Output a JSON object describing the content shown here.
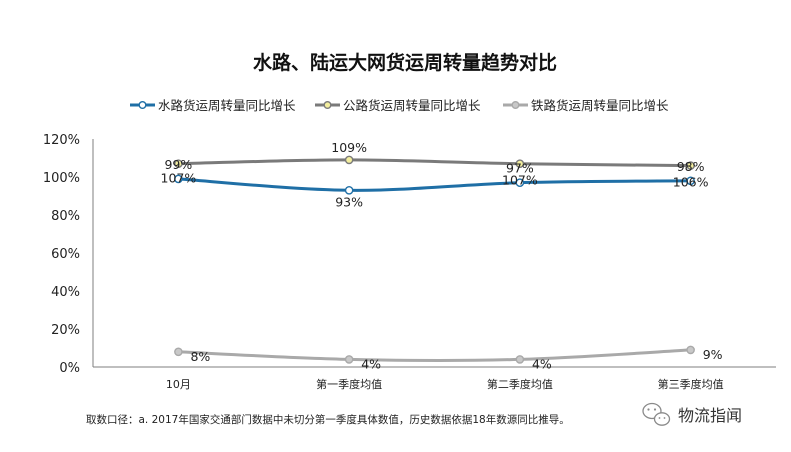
{
  "chart_data": {
    "type": "line",
    "title": "水路、陆运大网货运周转量趋势对比",
    "categories": [
      "10月",
      "第一季度均值",
      "第二季度均值",
      "第三季度均值"
    ],
    "ylim": [
      0,
      120
    ],
    "yticks": [
      "0%",
      "20%",
      "40%",
      "60%",
      "80%",
      "100%",
      "120%"
    ],
    "grid": false,
    "legend_position": "top",
    "series": [
      {
        "name": "水路货运周转量同比增长",
        "color": "#1f6fa6",
        "values": [
          99,
          93,
          97,
          98
        ],
        "labels": [
          "99%",
          "93%",
          "97%",
          "98%"
        ]
      },
      {
        "name": "公路货运周转量同比增长",
        "color": "#7a7a7a",
        "values": [
          107,
          109,
          107,
          106
        ],
        "labels": [
          "107%",
          "109%",
          "107%",
          "106%"
        ]
      },
      {
        "name": "铁路货运周转量同比增长",
        "color": "#a9a9a9",
        "values": [
          8,
          4,
          4,
          9
        ],
        "labels": [
          "8%",
          "4%",
          "4%",
          "9%"
        ]
      }
    ]
  },
  "footnote": "取数口径：a. 2017年国家交通部门数据中未切分第一季度具体数值，历史数据依据18年数源同比推导。",
  "brand": "物流指闻",
  "marker_colors": [
    "#ffffff",
    "#f3ee9e",
    "#c8c8c8"
  ]
}
